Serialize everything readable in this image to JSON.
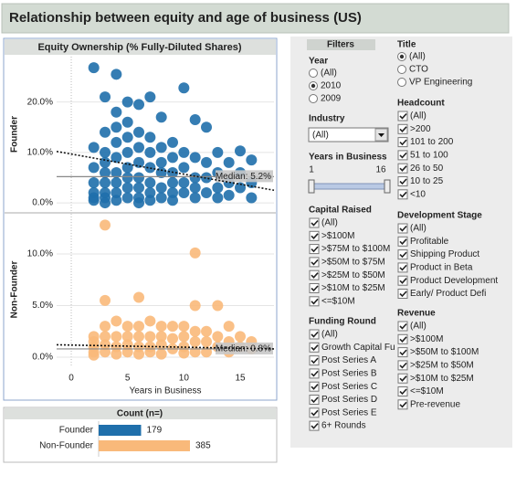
{
  "header": {
    "title": "Relationship between equity and age of business (US)"
  },
  "chart_data": [
    {
      "type": "scatter",
      "title": "Equity Ownership (% Fully-Diluted Shares)",
      "panel_label": "Founder",
      "color": "#1f6fab",
      "x": [
        2,
        2,
        2,
        2,
        2,
        2,
        2,
        3,
        3,
        3,
        3,
        3,
        3,
        3,
        3,
        3,
        4,
        4,
        4,
        4,
        4,
        4,
        4,
        4,
        4,
        5,
        5,
        5,
        5,
        5,
        5,
        5,
        5,
        6,
        6,
        6,
        6,
        6,
        6,
        6,
        6,
        7,
        7,
        7,
        7,
        7,
        7,
        7,
        8,
        8,
        8,
        8,
        8,
        8,
        9,
        9,
        9,
        9,
        9,
        9,
        10,
        10,
        10,
        10,
        10,
        11,
        11,
        11,
        11,
        11,
        12,
        12,
        12,
        12,
        13,
        13,
        13,
        13,
        14,
        14,
        14,
        15,
        15,
        15,
        16,
        16,
        16
      ],
      "values": [
        26.8,
        11,
        7,
        4,
        2,
        1,
        0.5,
        21,
        14,
        10,
        8,
        6,
        4,
        2,
        1,
        0,
        25.5,
        18,
        15,
        12,
        9,
        6,
        4,
        2,
        0.5,
        20,
        16,
        13,
        10,
        7,
        5,
        3,
        1,
        19.5,
        14,
        11,
        8,
        5,
        3,
        1,
        0,
        21,
        13,
        10,
        7,
        4,
        2,
        0.5,
        17,
        11,
        8,
        6,
        3,
        1,
        12,
        9,
        6,
        4,
        2,
        0.5,
        22.8,
        10,
        7,
        4,
        2,
        16.5,
        9,
        5,
        3,
        1,
        15,
        8,
        5,
        2,
        10,
        6,
        3,
        1,
        8,
        4,
        1.5,
        10.3,
        6,
        3,
        8.5,
        4,
        1
      ],
      "median": {
        "value": 5.2,
        "label": "Median: 5.2%"
      },
      "trend": {
        "x": [
          -1.3,
          18
        ],
        "y": [
          10.2,
          2.5
        ]
      },
      "xlim": [
        -1.3,
        18
      ],
      "ylim": [
        -1.8,
        29
      ],
      "yticks": [
        {
          "value": 0,
          "label": "0.0%"
        },
        {
          "value": 10,
          "label": "10.0%"
        },
        {
          "value": 20,
          "label": "20.0%"
        }
      ]
    },
    {
      "type": "scatter",
      "panel_label": "Non-Founder",
      "color": "#f9b97a",
      "x_label": "Years in Business",
      "x": [
        2,
        2,
        2,
        2,
        2,
        3,
        3,
        3,
        3,
        3,
        3,
        4,
        4,
        4,
        4,
        5,
        5,
        5,
        5,
        6,
        6,
        6,
        6,
        6,
        7,
        7,
        7,
        7,
        8,
        8,
        8,
        8,
        9,
        9,
        9,
        10,
        10,
        10,
        10,
        11,
        11,
        11,
        11,
        11,
        12,
        12,
        12,
        13,
        13,
        13,
        14,
        14,
        14,
        15,
        15,
        16,
        16
      ],
      "values": [
        2,
        1.5,
        1,
        0.5,
        0.2,
        12.8,
        5.5,
        3,
        2,
        1.2,
        0.5,
        3.5,
        2,
        1,
        0.3,
        3,
        2,
        1.2,
        0.5,
        5.8,
        3,
        2,
        1,
        0.3,
        3.5,
        2,
        1,
        0.5,
        3,
        2,
        1.2,
        0.3,
        3,
        1.8,
        0.8,
        3,
        2,
        1,
        0.4,
        10.1,
        5,
        2.5,
        1.5,
        0.5,
        2.5,
        1.5,
        0.5,
        5,
        2,
        1,
        3,
        1.5,
        0.5,
        2,
        1,
        1.5,
        0.8
      ],
      "median": {
        "value": 0.8,
        "label": "Median: 0.8%"
      },
      "trend": {
        "x": [
          -1.3,
          18
        ],
        "y": [
          1.2,
          0.8
        ]
      },
      "xlim": [
        -1.3,
        18
      ],
      "ylim": [
        -0.8,
        13.9
      ],
      "xticks": [
        0,
        5,
        10,
        15
      ],
      "yticks": [
        {
          "value": 0,
          "label": "0.0%"
        },
        {
          "value": 5,
          "label": "5.0%"
        },
        {
          "value": 10,
          "label": "10.0%"
        }
      ]
    },
    {
      "type": "hbar",
      "title": "Count (n=)",
      "categories": [
        "Founder",
        "Non-Founder"
      ],
      "values": [
        179,
        385
      ],
      "colors": [
        "#1f6fab",
        "#f9b97a"
      ]
    }
  ],
  "filters": {
    "label": "Filters",
    "year": {
      "title": "Year",
      "options": [
        "(All)",
        "2010",
        "2009"
      ],
      "selected": 1
    },
    "industry": {
      "title": "Industry",
      "value": "(All)"
    },
    "years_in_business": {
      "title": "Years in Business",
      "min": 1,
      "max": 16
    },
    "capital_raised": {
      "title": "Capital  Raised",
      "checked": true,
      "options": [
        "(All)",
        ">$100M",
        ">$75M to $100M",
        ">$50M to $75M",
        ">$25M to $50M",
        ">$10M to $25M",
        "<=$10M"
      ]
    },
    "funding_round": {
      "title": "Funding  Round",
      "checked": true,
      "options": [
        "(All)",
        "Growth Capital Fu",
        "Post Series A",
        "Post Series B",
        "Post Series C",
        "Post Series D",
        "Post Series E",
        "6+ Rounds"
      ]
    },
    "title_filter": {
      "title": "Title",
      "options": [
        "(All)",
        "CTO",
        "VP Engineering"
      ],
      "selected": 0
    },
    "headcount": {
      "title": "Headcount",
      "checked": true,
      "options": [
        "(All)",
        ">200",
        "101 to 200",
        "51 to 100",
        "26 to 50",
        "10 to 25",
        "<10"
      ]
    },
    "development_stage": {
      "title": "Development  Stage",
      "checked": true,
      "options": [
        "(All)",
        "Profitable",
        "Shipping Product",
        "Product in Beta",
        "Product Development",
        "Early/ Product Defi"
      ]
    },
    "revenue": {
      "title": "Revenue",
      "checked": true,
      "options": [
        "(All)",
        ">$100M",
        ">$50M to $100M",
        ">$25M to $50M",
        ">$10M to $25M",
        "<=$10M",
        "Pre-revenue"
      ]
    }
  }
}
